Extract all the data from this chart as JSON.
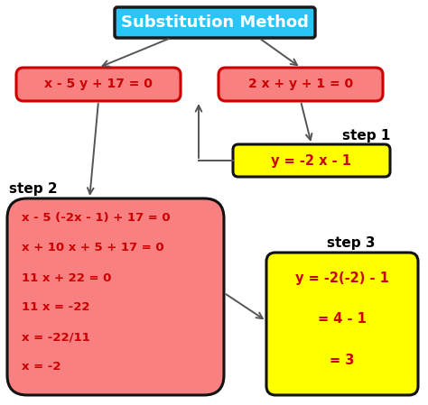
{
  "title": "Substitution Method",
  "title_bg": "#29C5F6",
  "title_text_color": "white",
  "title_border": "#1a1a1a",
  "eq1": "x - 5 y + 17 = 0",
  "eq2": "2 x + y + 1 = 0",
  "eq_bg": "#F98080",
  "eq_border": "#CC0000",
  "step1_label": "step 1",
  "step1_text": "y = -2 x - 1",
  "step1_bg": "#FFFF00",
  "step1_border": "#111111",
  "step2_label": "step 2",
  "step2_lines": [
    "x - 5 (-2x - 1) + 17 = 0",
    "x + 10 x + 5 + 17 = 0",
    "11 x + 22 = 0",
    "11 x = -22",
    "x = -22/11",
    "x = -2"
  ],
  "step2_bg": "#F98080",
  "step2_border": "#111111",
  "step3_label": "step 3",
  "step3_lines": [
    "y = -2(-2) - 1",
    "= 4 - 1",
    "= 3"
  ],
  "step3_bg": "#FFFF00",
  "step3_border": "#111111",
  "bg_color": "white",
  "label_color": "black",
  "label_fontsize": 11,
  "text_fontsize": 9.5,
  "title_fontsize": 13,
  "arrow_color": "#555555"
}
